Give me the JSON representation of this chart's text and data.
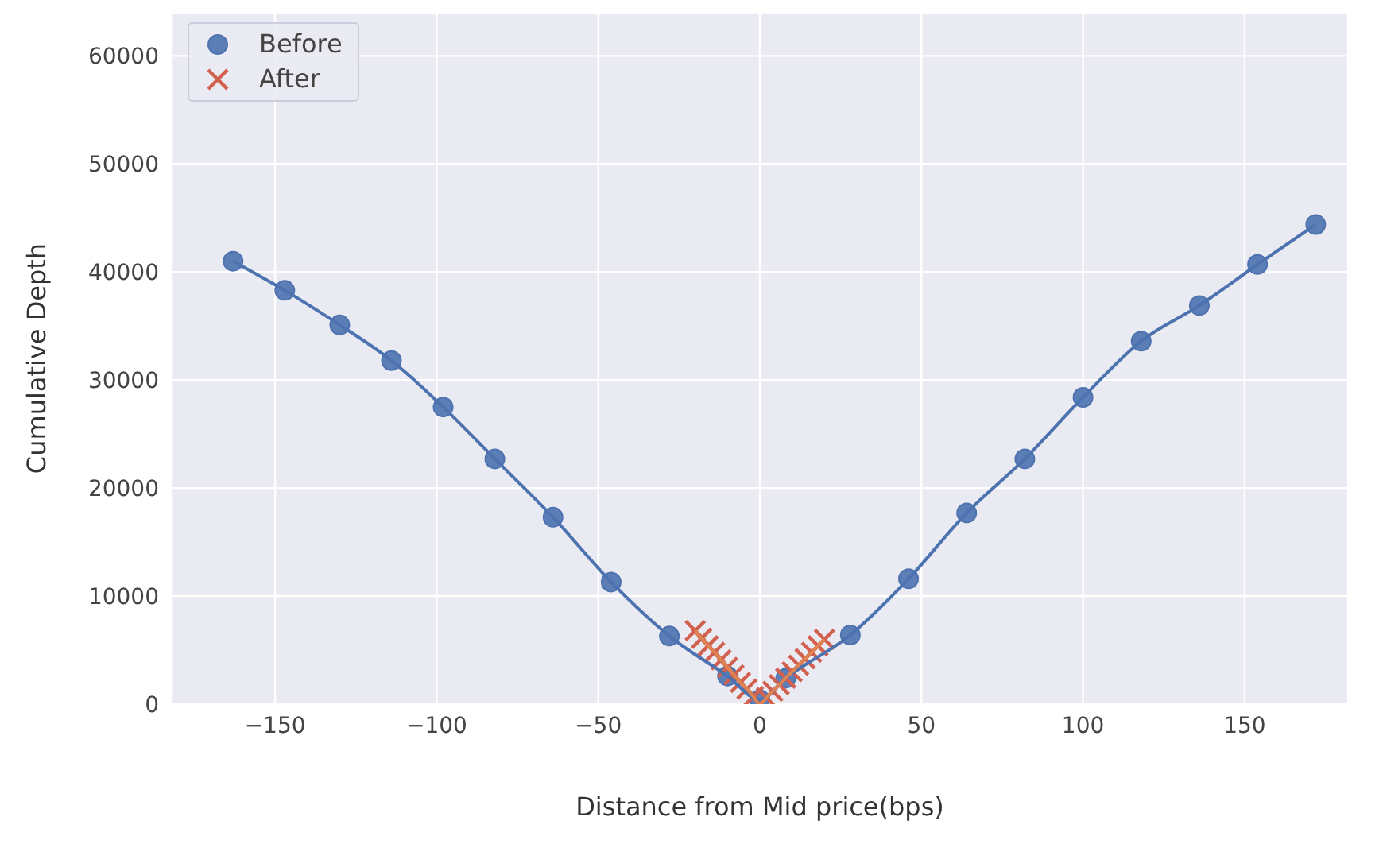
{
  "chart_data": {
    "type": "line",
    "xlabel": "Distance from Mid price(bps)",
    "ylabel": "Cumulative Depth",
    "xlim": [
      -182,
      182
    ],
    "xticks": [
      {
        "value": -150,
        "label": "−150"
      },
      {
        "value": -100,
        "label": "−100"
      },
      {
        "value": -50,
        "label": "−50"
      },
      0,
      50,
      100,
      150
    ],
    "ylim": [
      0,
      64000
    ],
    "yticks": [
      0,
      10000,
      20000,
      30000,
      40000,
      50000,
      60000
    ],
    "grid": true,
    "legend": "top left",
    "series": [
      {
        "name": "Before",
        "color": "#4c72b0",
        "marker": "circle",
        "x": [
          -163,
          -147,
          -130,
          -114,
          -98,
          -82,
          -64,
          -46,
          -28,
          -10,
          0,
          8,
          28,
          46,
          64,
          82,
          100,
          118,
          136,
          154,
          172
        ],
        "values": [
          41000,
          38300,
          35100,
          31800,
          27500,
          22700,
          17300,
          11300,
          6300,
          2600,
          400,
          2400,
          6400,
          11600,
          17700,
          22700,
          28400,
          33600,
          36900,
          40700,
          44400
        ]
      },
      {
        "name": "After",
        "type": "scatter",
        "color": "#d1604f",
        "marker": "cross",
        "x": [
          -20,
          -18,
          -16,
          -14,
          -12,
          -10,
          -8,
          -6,
          -4,
          -2,
          0,
          2,
          4,
          6,
          8,
          10,
          12,
          14,
          16,
          18,
          20
        ],
        "values": [
          6800,
          6100,
          5400,
          4800,
          4100,
          3400,
          2700,
          2000,
          1400,
          700,
          0,
          600,
          1200,
          1800,
          2400,
          3000,
          3600,
          4200,
          4800,
          5400,
          6000
        ]
      },
      {
        "type": "line",
        "color": "#dd8452",
        "marker": "none",
        "x": [
          -20,
          -18,
          -16,
          -14,
          -12,
          -10,
          -8,
          -6,
          -4,
          -2,
          0,
          2,
          4,
          6,
          8,
          10,
          12,
          14,
          16,
          18,
          20
        ],
        "values": [
          6800,
          6100,
          5400,
          4800,
          4100,
          3400,
          2700,
          2000,
          1400,
          700,
          0,
          600,
          1200,
          1800,
          2400,
          3000,
          3600,
          4200,
          4800,
          5400,
          6000
        ]
      }
    ]
  }
}
